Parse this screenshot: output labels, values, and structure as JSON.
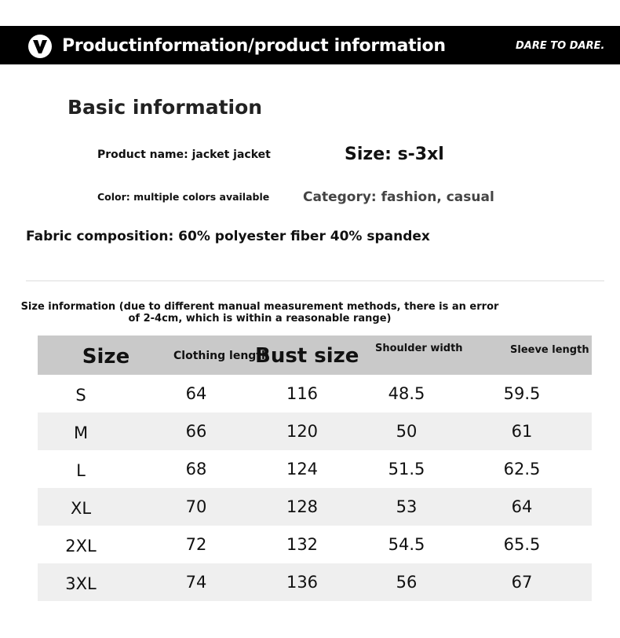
{
  "header": {
    "title": "Productinformation/product information",
    "slogan": "DARE TO DARE.",
    "logo_icon": "chevron-down-icon"
  },
  "basic": {
    "heading": "Basic information",
    "product_name": "Product name: jacket jacket",
    "size": "Size: s-3xl",
    "color": "Color: multiple colors available",
    "category": "Category: fashion, casual",
    "fabric": "Fabric composition: 60% polyester fiber 40% spandex"
  },
  "size_info": {
    "note": "Size information (due to different manual measurement methods, there is an error of 2-4cm, which is within a reasonable range)",
    "columns": [
      "Size",
      "Clothing length",
      "Bust size",
      "Shoulder width",
      "Sleeve length"
    ],
    "rows": [
      [
        "S",
        "64",
        "116",
        "48.5",
        "59.5"
      ],
      [
        "M",
        "66",
        "120",
        "50",
        "61"
      ],
      [
        "L",
        "68",
        "124",
        "51.5",
        "62.5"
      ],
      [
        "XL",
        "70",
        "128",
        "53",
        "64"
      ],
      [
        "2XL",
        "72",
        "132",
        "54.5",
        "65.5"
      ],
      [
        "3XL",
        "74",
        "136",
        "56",
        "67"
      ]
    ]
  }
}
